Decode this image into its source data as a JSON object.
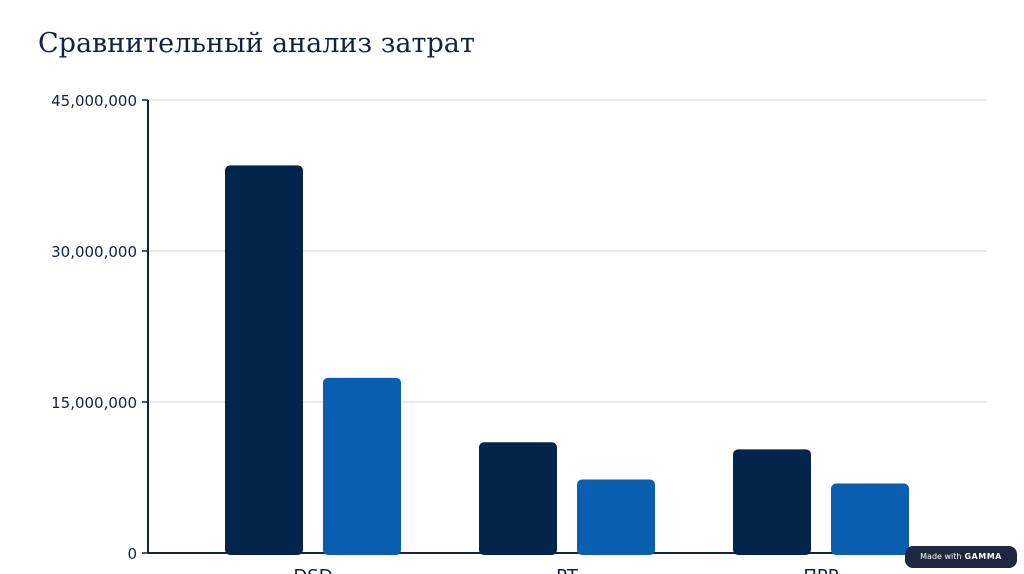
{
  "chart_data": {
    "type": "bar",
    "title": "Сравнительный анализ затрат",
    "categories": [
      "DSD",
      "PT",
      "ПРР"
    ],
    "series": [
      {
        "values": [
          38500000,
          11000000,
          10300000
        ]
      },
      {
        "values": [
          17400000,
          7300000,
          6900000
        ]
      }
    ],
    "ylim": [
      0,
      45000000
    ],
    "yticks": [
      0,
      15000000,
      30000000,
      45000000
    ],
    "ytick_labels": [
      "0",
      "15,000,000",
      "30,000,000",
      "45,000,000"
    ],
    "grid": true,
    "colors": [
      "#03254c",
      "#0a5eaf"
    ]
  },
  "badge": {
    "prefix": "Made with",
    "brand": "GAMMA"
  }
}
